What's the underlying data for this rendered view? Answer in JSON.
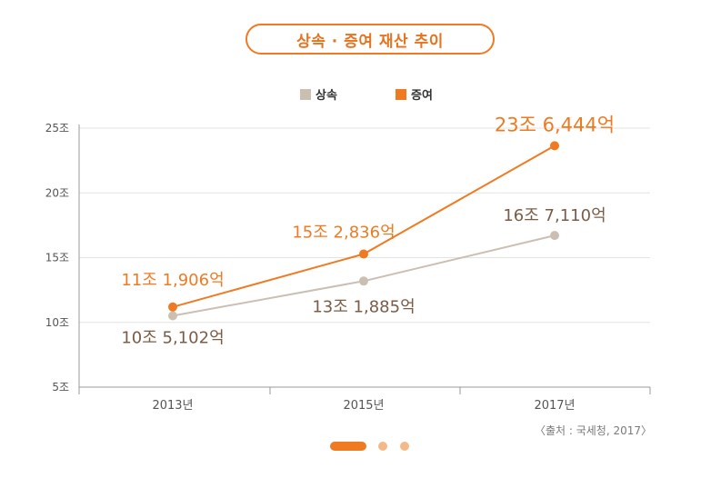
{
  "header": {
    "title": "상속 · 증여 재산 추이"
  },
  "source_note": "〈출처 : 국세청, 2017〉",
  "colors": {
    "inherit": "#cbbfb2",
    "gift": "#f07a22",
    "inherit_label": "#7b5c46",
    "gift_label": "#f07a22"
  },
  "chart_data": {
    "type": "line",
    "x": [
      "2013년",
      "2015년",
      "2017년"
    ],
    "series": [
      {
        "name": "상속",
        "values": [
          10.51,
          13.19,
          16.71
        ],
        "labels": [
          "10조 5,102억",
          "13조 1,885억",
          "16조 7,110억"
        ]
      },
      {
        "name": "증여",
        "values": [
          11.19,
          15.28,
          23.64
        ],
        "labels": [
          "11조 1,906억",
          "15조 2,836억",
          "23조 6,444억"
        ]
      }
    ],
    "y_ticks": [
      "5조",
      "10조",
      "15조",
      "20조",
      "25조"
    ],
    "ylim": [
      5,
      25
    ],
    "grid": true,
    "legend": "top-center"
  }
}
